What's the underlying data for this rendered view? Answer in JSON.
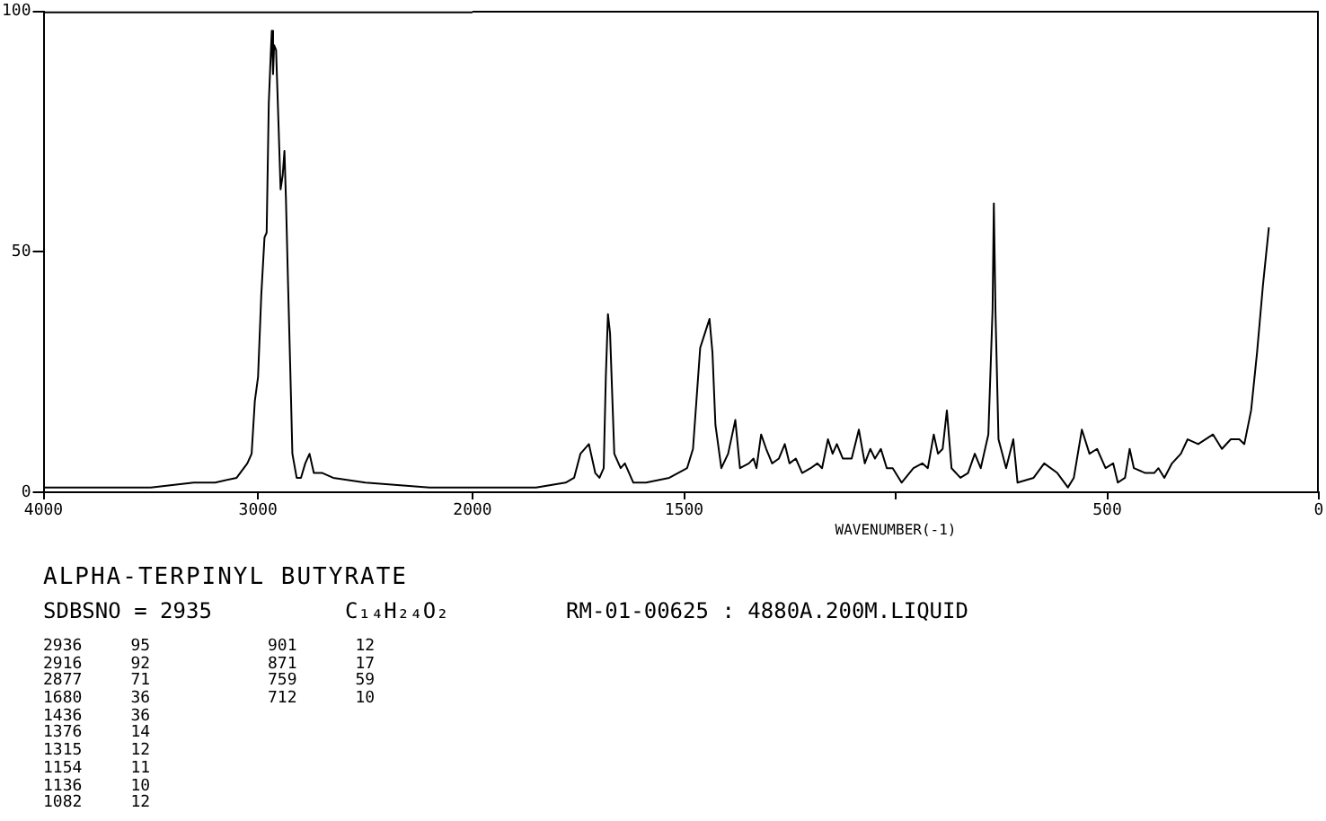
{
  "chart_data": [
    {
      "type": "line",
      "title": "ALPHA-TERPINYL BUTYRATE",
      "annotations": [
        "SDBSNO = 2935",
        "C₁₄H₂₄O₂",
        "RM-01-00625 : 4880A.200M.LIQUID",
        "2936 95",
        "2916 92",
        "2877 71",
        "1680 36",
        "1436 36",
        "1376 14",
        "1315 12",
        "1154 11",
        "1136 10",
        "1082 12",
        "901 12",
        "871 17",
        "759 59",
        "712 10"
      ],
      "xlim": [
        4000,
        2000
      ],
      "xticks": [
        4000,
        3000,
        2000
      ],
      "ylim": [
        0,
        100
      ],
      "yticks": [
        0,
        50,
        100
      ],
      "grid": false,
      "legend": false,
      "marker": "none",
      "line_style": "solid",
      "series": [
        {
          "color": "#000000",
          "x": [
            4000,
            3500,
            3300,
            3200,
            3100,
            3050,
            3030,
            3015,
            3000,
            2985,
            2970,
            2960,
            2950,
            2940,
            2936,
            2930,
            2925,
            2916,
            2905,
            2895,
            2885,
            2877,
            2870,
            2860,
            2850,
            2840,
            2820,
            2800,
            2780,
            2760,
            2740,
            2700,
            2650,
            2500,
            2200,
            2000
          ],
          "values": [
            1,
            1,
            2,
            2,
            3,
            6,
            8,
            19,
            24,
            41,
            53,
            54,
            81,
            92,
            96,
            87,
            93,
            92,
            77,
            63,
            66,
            71,
            61,
            43,
            26,
            8,
            3,
            3,
            6,
            8,
            4,
            4,
            3,
            2,
            1,
            1
          ]
        }
      ]
    },
    {
      "type": "line",
      "xlabel": "WAVENUMBER(-1)",
      "xlim": [
        2000,
        0
      ],
      "xticks": [
        1500,
        {
          "value": 1000,
          "label": null
        },
        500,
        0
      ],
      "ylim": [
        0,
        100
      ],
      "tick_labels": "x",
      "grid": false,
      "legend": false,
      "marker": "none",
      "line_style": "solid",
      "series": [
        {
          "color": "#000000",
          "x": [
            2000,
            1850,
            1780,
            1760,
            1745,
            1725,
            1710,
            1700,
            1690,
            1685,
            1680,
            1675,
            1665,
            1650,
            1640,
            1620,
            1590,
            1535,
            1493,
            1479,
            1462,
            1451,
            1440,
            1433,
            1426,
            1412,
            1396,
            1379,
            1368,
            1347,
            1336,
            1329,
            1318,
            1306,
            1292,
            1276,
            1262,
            1251,
            1236,
            1221,
            1201,
            1185,
            1174,
            1160,
            1149,
            1139,
            1125,
            1104,
            1087,
            1073,
            1060,
            1049,
            1035,
            1021,
            1007,
            986,
            958,
            937,
            924,
            910,
            900,
            889,
            879,
            868,
            847,
            829,
            813,
            799,
            781,
            771,
            768,
            764,
            757,
            739,
            722,
            712,
            674,
            649,
            618,
            593,
            579,
            560,
            542,
            524,
            504,
            486,
            475,
            458,
            447,
            437,
            410,
            389,
            379,
            365,
            347,
            326,
            310,
            285,
            250,
            229,
            208,
            188,
            176,
            160,
            146,
            132,
            118
          ],
          "values": [
            1,
            1,
            2,
            3,
            8,
            10,
            4,
            3,
            5,
            24,
            37,
            33,
            8,
            5,
            6,
            2,
            2,
            3,
            5,
            9,
            30,
            33,
            36,
            29,
            14,
            5,
            8,
            15,
            5,
            6,
            7,
            5,
            12,
            9,
            6,
            7,
            10,
            6,
            7,
            4,
            5,
            6,
            5,
            11,
            8,
            10,
            7,
            7,
            13,
            6,
            9,
            7,
            9,
            5,
            5,
            2,
            5,
            6,
            5,
            12,
            8,
            9,
            17,
            5,
            3,
            4,
            8,
            5,
            12,
            38,
            60,
            37,
            11,
            5,
            11,
            2,
            3,
            6,
            4,
            1,
            3,
            13,
            8,
            9,
            5,
            6,
            2,
            3,
            9,
            5,
            4,
            4,
            5,
            3,
            6,
            8,
            11,
            10,
            12,
            9,
            11,
            11,
            10,
            17,
            29,
            43,
            55
          ]
        }
      ]
    }
  ]
}
